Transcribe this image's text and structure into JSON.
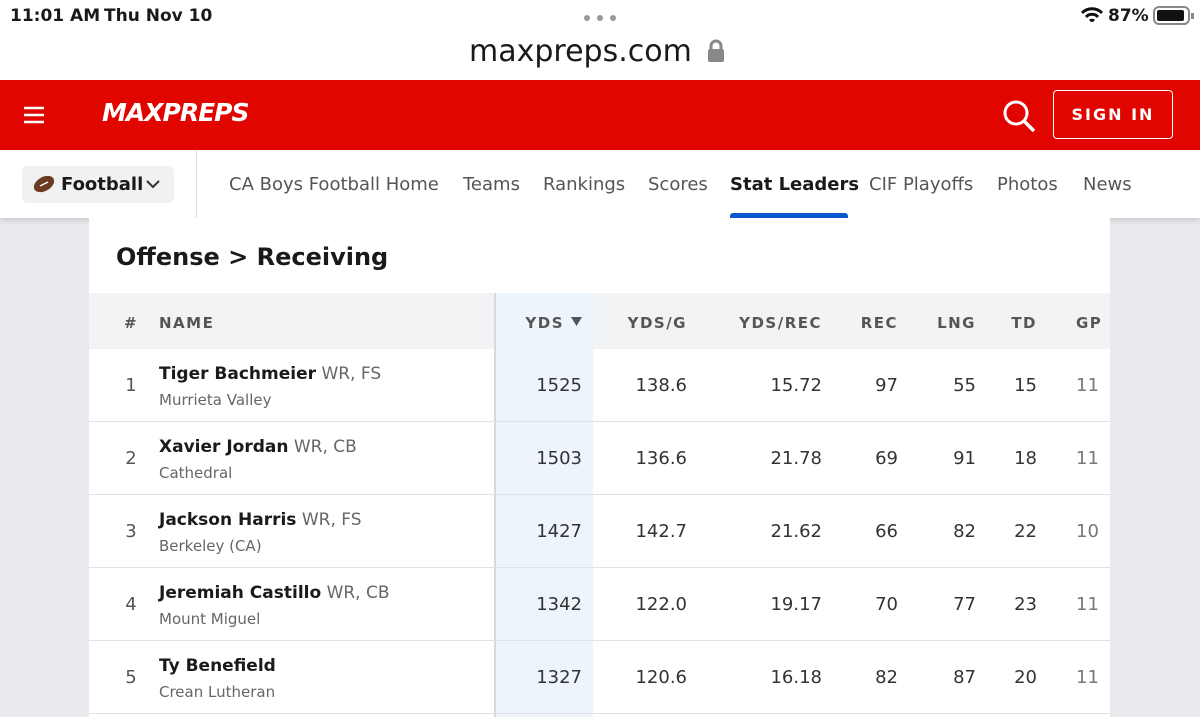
{
  "status_bar": {
    "time": "11:01 AM",
    "date": "Thu Nov 10",
    "battery": "87%"
  },
  "browser": {
    "url": "maxpreps.com"
  },
  "header": {
    "logo": "MAXPREPS",
    "sign_in": "SIGN IN"
  },
  "nav": {
    "sport": "Football",
    "links": [
      "CA Boys Football Home",
      "Teams",
      "Rankings",
      "Scores",
      "Stat Leaders",
      "CIF Playoffs",
      "Photos",
      "News"
    ]
  },
  "table": {
    "title": "Offense > Receiving",
    "columns": [
      "#",
      "NAME",
      "YDS",
      "YDS/G",
      "YDS/REC",
      "REC",
      "LNG",
      "TD",
      "GP"
    ],
    "rows": [
      {
        "rank": "1",
        "name": "Tiger Bachmeier",
        "position": "WR, FS",
        "school": "Murrieta Valley",
        "stats": [
          "1525",
          "138.6",
          "15.72",
          "97",
          "55",
          "15",
          "11"
        ]
      },
      {
        "rank": "2",
        "name": "Xavier Jordan",
        "position": "WR, CB",
        "school": "Cathedral",
        "stats": [
          "1503",
          "136.6",
          "21.78",
          "69",
          "91",
          "18",
          "11"
        ]
      },
      {
        "rank": "3",
        "name": "Jackson Harris",
        "position": "WR, FS",
        "school": "Berkeley (CA)",
        "stats": [
          "1427",
          "142.7",
          "21.62",
          "66",
          "82",
          "22",
          "10"
        ]
      },
      {
        "rank": "4",
        "name": "Jeremiah Castillo",
        "position": "WR, CB",
        "school": "Mount Miguel",
        "stats": [
          "1342",
          "122.0",
          "19.17",
          "70",
          "77",
          "23",
          "11"
        ]
      },
      {
        "rank": "5",
        "name": "Ty Benefield",
        "position": "",
        "school": "Crean Lutheran",
        "stats": [
          "1327",
          "120.6",
          "16.18",
          "82",
          "87",
          "20",
          "11"
        ]
      }
    ]
  }
}
